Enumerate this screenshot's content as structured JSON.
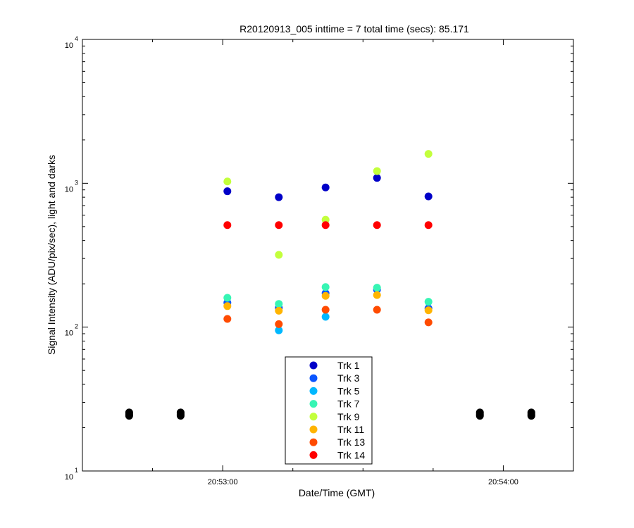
{
  "chart_data": {
    "type": "scatter",
    "title": "R20120913_005 inttime = 7 total time (secs): 85.171",
    "xlabel": "Date/Time (GMT)",
    "ylabel": "Signal Intensity (ADU/pix/sec), light and darks",
    "y_scale": "log",
    "ylim": [
      10,
      10000
    ],
    "xlim": [
      "20:52:30",
      "20:54:15"
    ],
    "x_ticks": [
      "20:53:00",
      "20:54:00"
    ],
    "y_tick_labels": [
      {
        "base": "10",
        "exp": "1"
      },
      {
        "base": "10",
        "exp": "2"
      },
      {
        "base": "10",
        "exp": "3"
      },
      {
        "base": "10",
        "exp": "4"
      }
    ],
    "legend_position": "bottom-center",
    "grid": false,
    "series": [
      {
        "name": "Trk 1",
        "color": "#0000c8",
        "points": [
          [
            "20:53:01",
            880
          ],
          [
            "20:53:12",
            800
          ],
          [
            "20:53:22",
            935
          ],
          [
            "20:53:33",
            1090
          ],
          [
            "20:53:44",
            810
          ]
        ]
      },
      {
        "name": "Trk 3",
        "color": "#0a55ff",
        "points": [
          [
            "20:53:01",
            148
          ],
          [
            "20:53:12",
            136
          ],
          [
            "20:53:22",
            172
          ],
          [
            "20:53:33",
            182
          ],
          [
            "20:53:44",
            135
          ]
        ]
      },
      {
        "name": "Trk 5",
        "color": "#00b8ff",
        "points": [
          [
            "20:53:12",
            95
          ],
          [
            "20:53:22",
            118
          ]
        ]
      },
      {
        "name": "Trk 7",
        "color": "#37f5b4",
        "points": [
          [
            "20:53:01",
            160
          ],
          [
            "20:53:12",
            145
          ],
          [
            "20:53:22",
            190
          ],
          [
            "20:53:33",
            188
          ],
          [
            "20:53:44",
            150
          ]
        ]
      },
      {
        "name": "Trk 9",
        "color": "#c3ff3c",
        "points": [
          [
            "20:53:01",
            1030
          ],
          [
            "20:53:12",
            318
          ],
          [
            "20:53:22",
            558
          ],
          [
            "20:53:33",
            1215
          ],
          [
            "20:53:44",
            1600
          ]
        ]
      },
      {
        "name": "Trk 11",
        "color": "#ffb400",
        "points": [
          [
            "20:53:01",
            140
          ],
          [
            "20:53:12",
            130
          ],
          [
            "20:53:22",
            165
          ],
          [
            "20:53:33",
            167
          ],
          [
            "20:53:44",
            131
          ]
        ]
      },
      {
        "name": "Trk 13",
        "color": "#ff4b00",
        "points": [
          [
            "20:53:01",
            114
          ],
          [
            "20:53:12",
            105
          ],
          [
            "20:53:22",
            132
          ],
          [
            "20:53:33",
            132
          ],
          [
            "20:53:44",
            108
          ]
        ]
      },
      {
        "name": "Trk 14",
        "color": "#ff0000",
        "points": [
          [
            "20:53:01",
            512
          ],
          [
            "20:53:12",
            512
          ],
          [
            "20:53:22",
            512
          ],
          [
            "20:53:33",
            512
          ],
          [
            "20:53:44",
            512
          ]
        ]
      },
      {
        "name": "",
        "color": "#000000",
        "points": [
          [
            "20:52:40",
            25.5
          ],
          [
            "20:52:40",
            24.8
          ],
          [
            "20:52:40",
            24.2
          ],
          [
            "20:52:51",
            25.5
          ],
          [
            "20:52:51",
            24.8
          ],
          [
            "20:52:51",
            24.2
          ],
          [
            "20:53:55",
            25.5
          ],
          [
            "20:53:55",
            24.8
          ],
          [
            "20:53:55",
            24.2
          ],
          [
            "20:54:06",
            25.5
          ],
          [
            "20:54:06",
            24.8
          ],
          [
            "20:54:06",
            24.2
          ]
        ]
      }
    ]
  }
}
